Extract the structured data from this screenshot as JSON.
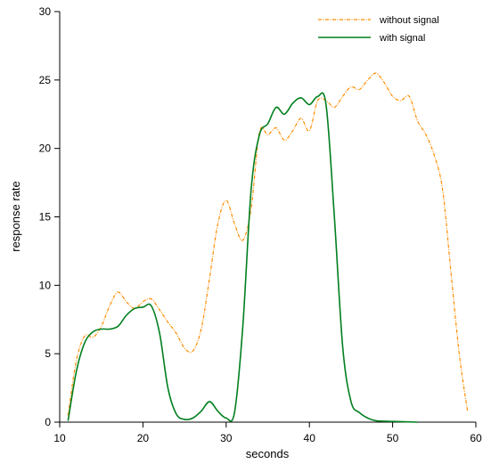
{
  "chart_data": {
    "type": "line",
    "xlabel": "seconds",
    "ylabel": "response rate",
    "xlim": [
      10,
      60
    ],
    "ylim": [
      0,
      30
    ],
    "x_ticks": [
      10,
      20,
      30,
      40,
      50,
      60
    ],
    "y_ticks": [
      0,
      5,
      10,
      15,
      20,
      25,
      30
    ],
    "grid": false,
    "legend_position": "top-right",
    "series": [
      {
        "name": "without signal",
        "color": "#ff8c00",
        "style": "dash-dot",
        "x": [
          11,
          12,
          13,
          14,
          15,
          16,
          17,
          18,
          19,
          20,
          21,
          22,
          23,
          24,
          25,
          26,
          27,
          28,
          29,
          30,
          31,
          32,
          33,
          34,
          35,
          36,
          37,
          38,
          39,
          40,
          41,
          42,
          43,
          44,
          45,
          46,
          47,
          48,
          49,
          50,
          51,
          52,
          53,
          54,
          55,
          56,
          57,
          58,
          59
        ],
        "y": [
          0.5,
          4.5,
          6.3,
          6.2,
          7.0,
          8.5,
          9.5,
          8.8,
          8.3,
          8.8,
          9.0,
          8.2,
          7.3,
          6.5,
          5.4,
          5.2,
          6.8,
          10.5,
          14.5,
          16.2,
          14.5,
          13.3,
          15.6,
          21.2,
          21.0,
          21.5,
          20.6,
          21.3,
          22.2,
          21.3,
          23.5,
          23.5,
          23.0,
          23.8,
          24.5,
          24.3,
          25.0,
          25.5,
          24.8,
          23.8,
          23.5,
          23.8,
          22.0,
          21.0,
          19.5,
          17.0,
          11.0,
          5.0,
          0.8
        ]
      },
      {
        "name": "with signal",
        "color": "#007f1f",
        "style": "solid",
        "x": [
          11,
          12,
          13,
          14,
          15,
          16,
          17,
          18,
          19,
          20,
          21,
          22,
          23,
          24,
          25,
          26,
          27,
          28,
          29,
          30,
          31,
          32,
          33,
          34,
          35,
          36,
          37,
          38,
          39,
          40,
          41,
          42,
          43,
          44,
          45,
          46,
          47,
          48,
          50,
          53
        ],
        "y": [
          0.1,
          3.7,
          5.8,
          6.6,
          6.8,
          6.8,
          7.0,
          7.8,
          8.3,
          8.4,
          8.5,
          6.5,
          2.5,
          0.6,
          0.2,
          0.3,
          0.8,
          1.5,
          0.8,
          0.3,
          0.7,
          7.0,
          17.0,
          21.0,
          21.8,
          23.0,
          22.5,
          23.3,
          23.7,
          23.2,
          23.8,
          23.2,
          15.0,
          5.5,
          1.5,
          0.7,
          0.3,
          0.1,
          0.05,
          0.0
        ]
      }
    ]
  }
}
